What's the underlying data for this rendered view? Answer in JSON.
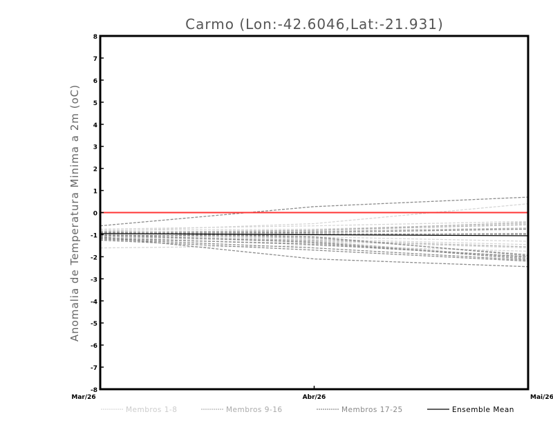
{
  "chart_data": {
    "type": "line",
    "title": "Carmo (Lon:-42.6046,Lat:-21.931)",
    "xlabel": "",
    "ylabel": "Anomalia de Temperatura Minima a 2m (oC)",
    "ylim": [
      -8,
      8
    ],
    "yticks": [
      "-8",
      "-7",
      "-6",
      "-5",
      "-4",
      "-3",
      "-2",
      "-1",
      "0",
      "1",
      "2",
      "3",
      "4",
      "5",
      "6",
      "7",
      "8"
    ],
    "categories": [
      "Mar/26",
      "Abr/26",
      "Mai/26"
    ],
    "reference_line": {
      "value": 0,
      "color": "#ff3333"
    },
    "legend_position": "bottom",
    "groups": [
      {
        "name": "Membros 1-8",
        "color": "#d6d6d6",
        "series": [
          [
            -1.6,
            -1.5,
            -1.75
          ],
          [
            -0.85,
            -0.5,
            0.4
          ],
          [
            -0.8,
            -0.75,
            -0.5
          ],
          [
            -1.0,
            -1.1,
            -1.3
          ],
          [
            -0.9,
            -0.95,
            -1.0
          ],
          [
            -1.15,
            -1.3,
            -1.6
          ],
          [
            -0.75,
            -0.6,
            -0.4
          ],
          [
            -1.05,
            -1.2,
            -1.45
          ]
        ]
      },
      {
        "name": "Membros 9-16",
        "color": "#b4b4b4",
        "series": [
          [
            -0.95,
            -0.85,
            -0.7
          ],
          [
            -1.2,
            -1.4,
            -2.0
          ],
          [
            -0.9,
            -0.8,
            -0.45
          ],
          [
            -1.0,
            -1.15,
            -1.9
          ],
          [
            -1.1,
            -1.25,
            -1.55
          ],
          [
            -0.85,
            -0.95,
            -1.0
          ],
          [
            -1.05,
            -1.3,
            -2.05
          ],
          [
            -0.95,
            -0.8,
            -0.55
          ]
        ]
      },
      {
        "name": "Membros 17-25",
        "color": "#8c8c8c",
        "series": [
          [
            -0.6,
            0.27,
            0.7
          ],
          [
            -1.1,
            -2.1,
            -2.45
          ],
          [
            -1.2,
            -1.6,
            -2.15
          ],
          [
            -1.0,
            -1.35,
            -2.1
          ],
          [
            -0.9,
            -1.1,
            -1.95
          ],
          [
            -1.05,
            -1.0,
            -0.95
          ],
          [
            -1.15,
            -1.45,
            -2.0
          ],
          [
            -0.95,
            -0.9,
            -0.75
          ],
          [
            -1.25,
            -1.7,
            -2.2
          ]
        ]
      }
    ],
    "ensemble_mean": {
      "name": "Ensemble Mean",
      "color": "#000000",
      "values": [
        -0.95,
        -1.0,
        -1.05
      ]
    }
  }
}
